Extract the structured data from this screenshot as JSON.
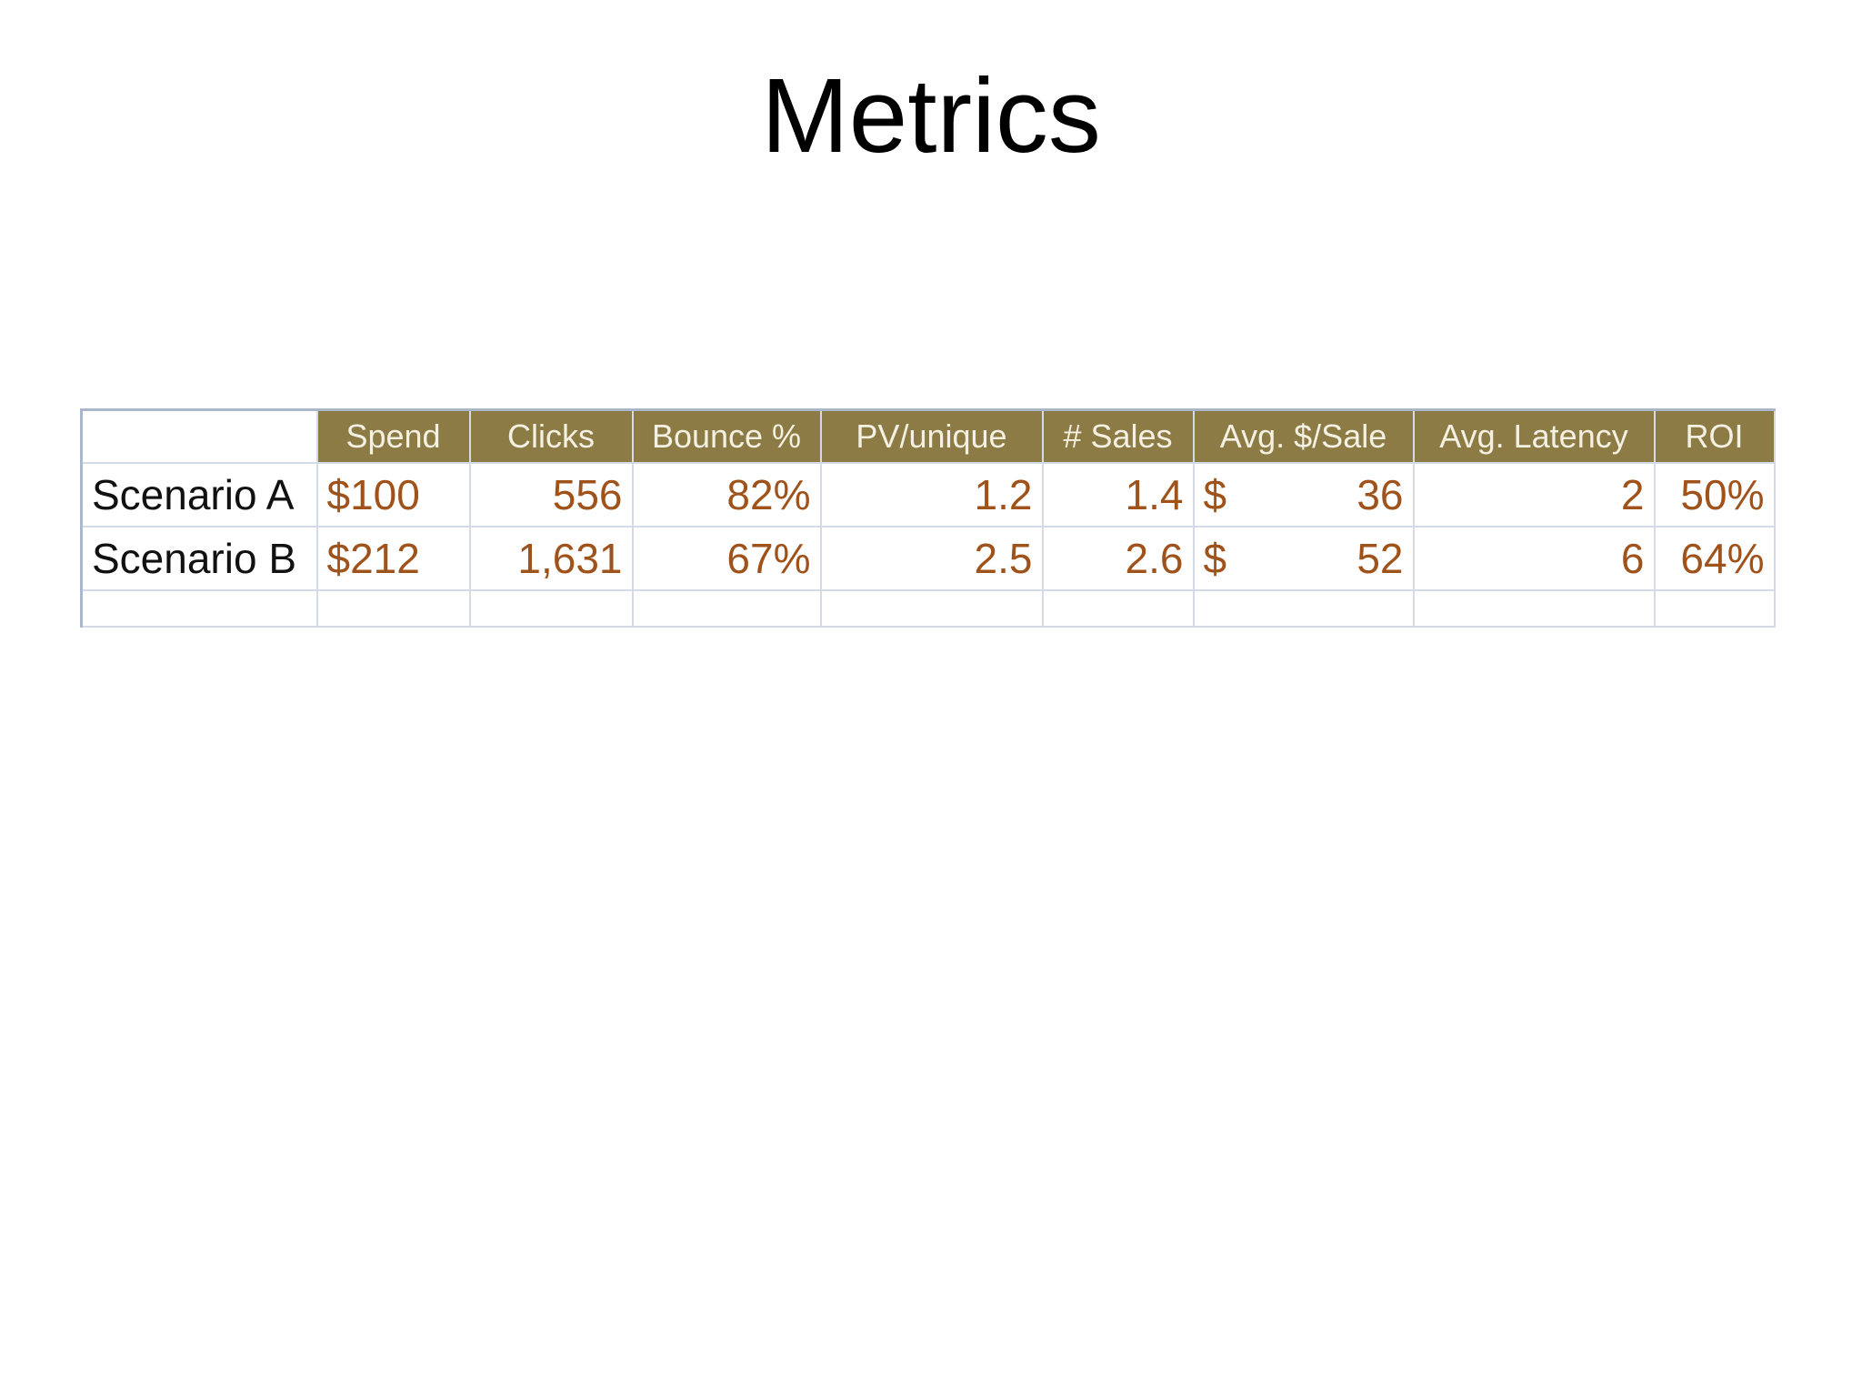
{
  "slide": {
    "title": "Metrics"
  },
  "table": {
    "headers": [
      "",
      "Spend",
      "Clicks",
      "Bounce %",
      "PV/unique",
      "# Sales",
      "Avg. $/Sale",
      "Avg. Latency",
      "ROI"
    ],
    "rows": [
      {
        "label": "Scenario A",
        "spend": "$100",
        "clicks": "556",
        "bounce": "82%",
        "pv_unique": "1.2",
        "sales": "1.4",
        "avg_sale_symbol": "$",
        "avg_sale_value": "36",
        "avg_latency": "2",
        "roi": "50%"
      },
      {
        "label": "Scenario B",
        "spend": "$212",
        "clicks": "1,631",
        "bounce": "67%",
        "pv_unique": "2.5",
        "sales": "2.6",
        "avg_sale_symbol": "$",
        "avg_sale_value": "52",
        "avg_latency": "6",
        "roi": "64%"
      }
    ]
  },
  "colors": {
    "header_fill": "#8c7b45",
    "header_text": "#f4f0e2",
    "value_text": "#a0521b",
    "label_text": "#111111",
    "grid_line": "#d4dae6"
  }
}
